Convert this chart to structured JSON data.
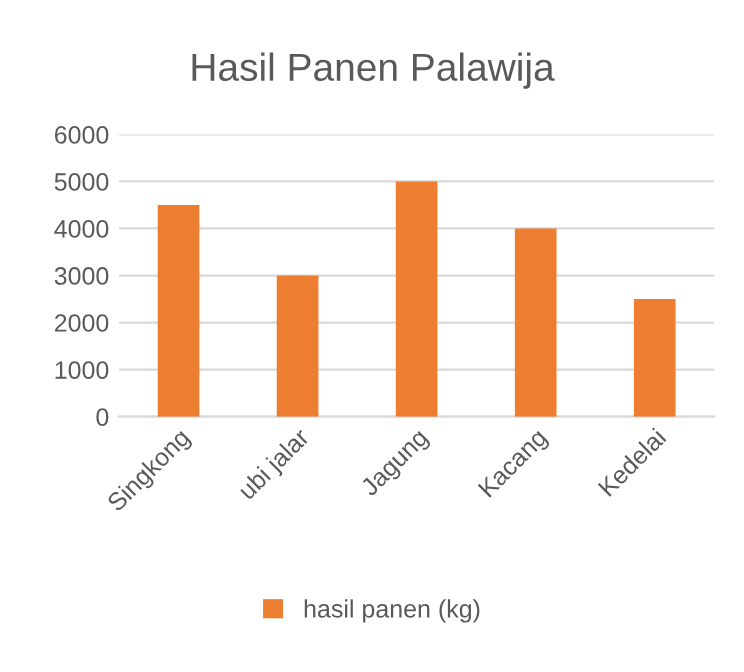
{
  "chart_data": {
    "type": "bar",
    "title": "Hasil Panen Palawija",
    "categories": [
      "Singkong",
      "ubi jalar",
      "Jagung",
      "Kacang",
      "Kedelai"
    ],
    "series": [
      {
        "name": "hasil panen (kg)",
        "color": "#ed7d31",
        "values": [
          4500,
          3000,
          5000,
          4000,
          2500
        ]
      }
    ],
    "ylim": [
      0,
      6000
    ],
    "yticks": [
      0,
      1000,
      2000,
      3000,
      4000,
      5000,
      6000
    ],
    "grid": "y",
    "legend": "bottom"
  }
}
